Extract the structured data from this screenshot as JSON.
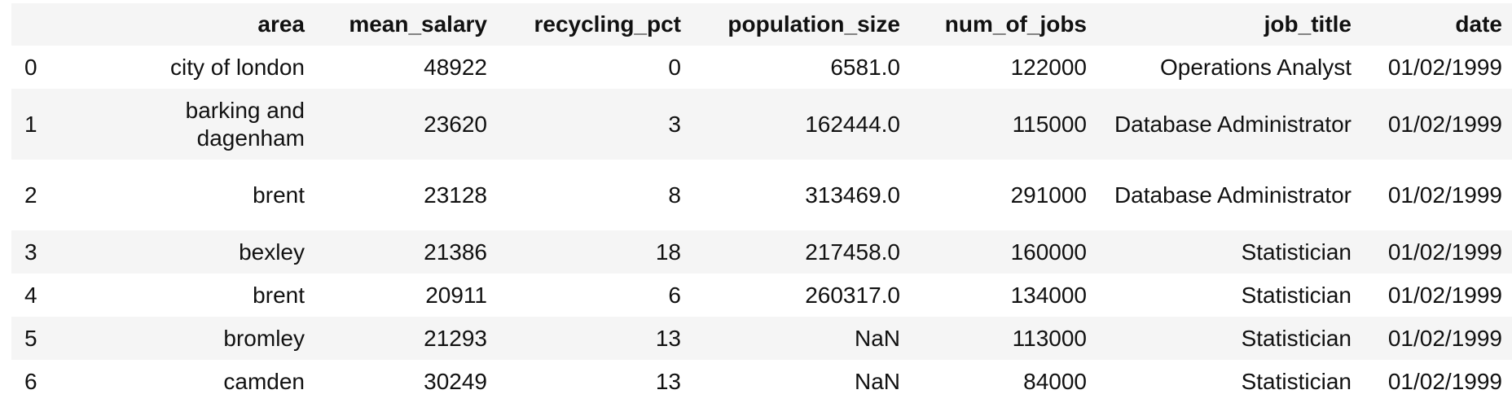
{
  "table": {
    "columns": [
      "area",
      "mean_salary",
      "recycling_pct",
      "population_size",
      "num_of_jobs",
      "job_title",
      "date"
    ],
    "rows": [
      {
        "index": "0",
        "area": "city of london",
        "mean_salary": "48922",
        "recycling_pct": "0",
        "population_size": "6581.0",
        "num_of_jobs": "122000",
        "job_title": "Operations Analyst",
        "date": "01/02/1999"
      },
      {
        "index": "1",
        "area": "barking and dagenham",
        "mean_salary": "23620",
        "recycling_pct": "3",
        "population_size": "162444.0",
        "num_of_jobs": "115000",
        "job_title": "Database Administrator",
        "date": "01/02/1999"
      },
      {
        "index": "2",
        "area": "brent",
        "mean_salary": "23128",
        "recycling_pct": "8",
        "population_size": "313469.0",
        "num_of_jobs": "291000",
        "job_title": "Database Administrator",
        "date": "01/02/1999"
      },
      {
        "index": "3",
        "area": "bexley",
        "mean_salary": "21386",
        "recycling_pct": "18",
        "population_size": "217458.0",
        "num_of_jobs": "160000",
        "job_title": "Statistician",
        "date": "01/02/1999"
      },
      {
        "index": "4",
        "area": "brent",
        "mean_salary": "20911",
        "recycling_pct": "6",
        "population_size": "260317.0",
        "num_of_jobs": "134000",
        "job_title": "Statistician",
        "date": "01/02/1999"
      },
      {
        "index": "5",
        "area": "bromley",
        "mean_salary": "21293",
        "recycling_pct": "13",
        "population_size": "NaN",
        "num_of_jobs": "113000",
        "job_title": "Statistician",
        "date": "01/02/1999"
      },
      {
        "index": "6",
        "area": "camden",
        "mean_salary": "30249",
        "recycling_pct": "13",
        "population_size": "NaN",
        "num_of_jobs": "84000",
        "job_title": "Statistician",
        "date": "01/02/1999"
      }
    ]
  },
  "colors": {
    "stripe": "#f5f5f5",
    "text": "#111111"
  }
}
